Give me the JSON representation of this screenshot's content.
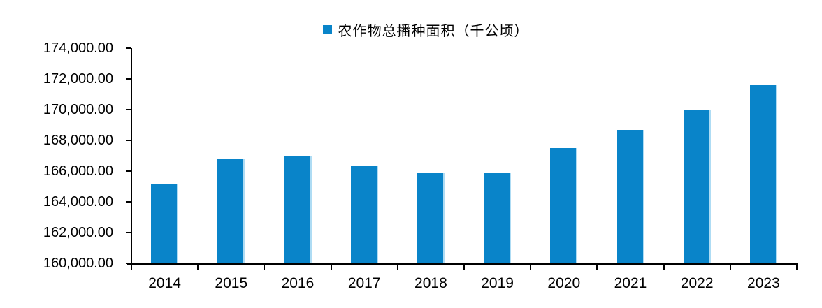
{
  "legend": {
    "label": "农作物总播种面积（千公顷）",
    "marker_color": "#0984C9"
  },
  "chart_data": {
    "type": "bar",
    "title": "",
    "legend_entries": [
      "农作物总播种面积（千公顷）"
    ],
    "legend_position": "top-center",
    "categories": [
      "2014",
      "2015",
      "2016",
      "2017",
      "2018",
      "2019",
      "2020",
      "2021",
      "2022",
      "2023"
    ],
    "series": [
      {
        "name": "农作物总播种面积（千公顷）",
        "values": [
          165150,
          166830,
          166940,
          166330,
          165900,
          165930,
          167490,
          168700,
          170000,
          171620
        ]
      }
    ],
    "xlabel": "",
    "ylabel": "",
    "ylim": [
      160000,
      174000
    ],
    "ytick_step": 2000,
    "ytick_labels": [
      "160,000.00",
      "162,000.00",
      "164,000.00",
      "166,000.00",
      "168,000.00",
      "170,000.00",
      "172,000.00",
      "174,000.00"
    ],
    "grid": false,
    "colors": {
      "bar_fill": "#0984C9",
      "bar_right_edge": "#AEDCF4",
      "axis": "#000000",
      "text": "#000000",
      "background": "#FFFFFF"
    }
  }
}
